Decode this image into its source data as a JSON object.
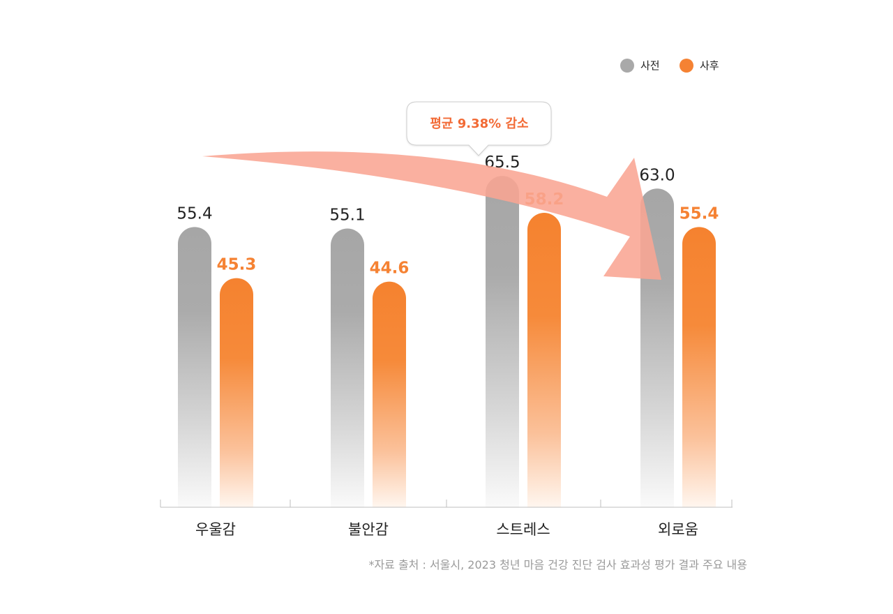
{
  "chart_data": {
    "type": "bar",
    "categories": [
      "우울감",
      "불안감",
      "스트레스",
      "외로움"
    ],
    "series": [
      {
        "name": "사전",
        "values": [
          55.4,
          55.1,
          65.5,
          63.0
        ],
        "labels": [
          "55.4",
          "55.1",
          "65.5",
          "63.0"
        ],
        "color": "#a9a9a9"
      },
      {
        "name": "사후",
        "values": [
          45.3,
          44.6,
          58.2,
          55.4
        ],
        "labels": [
          "45.3",
          "44.6",
          "58.2",
          "55.4"
        ],
        "color": "#f58233"
      }
    ],
    "annotation": "평균 9.38% 감소",
    "source": "*자료 출처 : 서울시, 2023 청년 마음 건강 진단 검사 효과성 평가 결과 주요 내용",
    "ylim": [
      0,
      80
    ],
    "legend_position": "top-right",
    "grid": false
  },
  "colors": {
    "before": "#a9a9a9",
    "after": "#f58233",
    "annotation_text": "#f26a35",
    "arrow": "#f9a593",
    "axis": "#bfbfbf",
    "source_text": "#9a9a9a"
  }
}
